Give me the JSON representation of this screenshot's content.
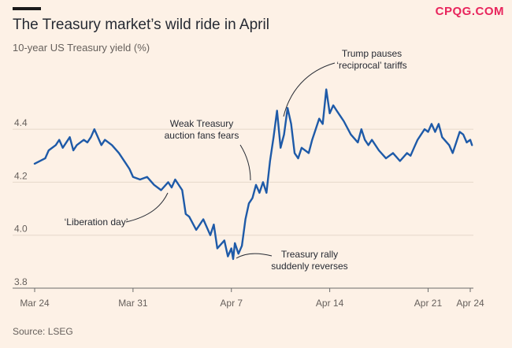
{
  "title": "The Treasury market’s wild ride in April",
  "subtitle": "10-year US Treasury yield (%)",
  "source": "Source: LSEG",
  "watermark": "CPQG.COM",
  "colors": {
    "background": "#fdf1e6",
    "line": "#1e5aa8",
    "text": "#262a33",
    "muted": "#66605c",
    "watermark": "#e8245c"
  },
  "chart_data": {
    "type": "line",
    "title": "The Treasury market’s wild ride in April",
    "subtitle": "10-year US Treasury yield (%)",
    "ylim": [
      3.8,
      4.65
    ],
    "yticks": [
      3.8,
      4.0,
      4.2,
      4.4
    ],
    "ytick_labels": [
      "3.8",
      "4.0",
      "4.2",
      "4.4"
    ],
    "xlim": [
      "2025-03-24",
      "2025-04-24"
    ],
    "xticks": [
      "2025-03-24",
      "2025-03-31",
      "2025-04-07",
      "2025-04-14",
      "2025-04-21",
      "2025-04-24"
    ],
    "xtick_labels": [
      "Mar 24",
      "Mar 31",
      "Apr 7",
      "Apr 14",
      "Apr 21",
      "Apr 24"
    ],
    "grid": "horizontal",
    "series": [
      {
        "points": [
          [
            "2025-03-24",
            4.27
          ],
          [
            "2025-03-24T18:00",
            4.29
          ],
          [
            "2025-03-25",
            4.32
          ],
          [
            "2025-03-25T12:00",
            4.34
          ],
          [
            "2025-03-25T18:00",
            4.36
          ],
          [
            "2025-03-26",
            4.33
          ],
          [
            "2025-03-26T12:00",
            4.37
          ],
          [
            "2025-03-26T18:00",
            4.32
          ],
          [
            "2025-03-27",
            4.34
          ],
          [
            "2025-03-27T12:00",
            4.36
          ],
          [
            "2025-03-27T18:00",
            4.35
          ],
          [
            "2025-03-28",
            4.37
          ],
          [
            "2025-03-28T06:00",
            4.4
          ],
          [
            "2025-03-28T12:00",
            4.37
          ],
          [
            "2025-03-28T18:00",
            4.34
          ],
          [
            "2025-03-29",
            4.36
          ],
          [
            "2025-03-29T12:00",
            4.34
          ],
          [
            "2025-03-30",
            4.31
          ],
          [
            "2025-03-30T12:00",
            4.27
          ],
          [
            "2025-03-30T18:00",
            4.25
          ],
          [
            "2025-03-31",
            4.22
          ],
          [
            "2025-03-31T12:00",
            4.21
          ],
          [
            "2025-04-01",
            4.22
          ],
          [
            "2025-04-01T12:00",
            4.19
          ],
          [
            "2025-04-02",
            4.17
          ],
          [
            "2025-04-02T12:00",
            4.2
          ],
          [
            "2025-04-02T18:00",
            4.18
          ],
          [
            "2025-04-03",
            4.21
          ],
          [
            "2025-04-03T12:00",
            4.17
          ],
          [
            "2025-04-03T18:00",
            4.08
          ],
          [
            "2025-04-04",
            4.07
          ],
          [
            "2025-04-04T12:00",
            4.02
          ],
          [
            "2025-04-05",
            4.06
          ],
          [
            "2025-04-05T12:00",
            4.0
          ],
          [
            "2025-04-05T18:00",
            4.04
          ],
          [
            "2025-04-06",
            3.95
          ],
          [
            "2025-04-06T12:00",
            3.98
          ],
          [
            "2025-04-06T18:00",
            3.92
          ],
          [
            "2025-04-07",
            3.95
          ],
          [
            "2025-04-07T03:00",
            3.91
          ],
          [
            "2025-04-07T06:00",
            3.97
          ],
          [
            "2025-04-07T12:00",
            3.93
          ],
          [
            "2025-04-07T18:00",
            3.96
          ],
          [
            "2025-04-08",
            4.06
          ],
          [
            "2025-04-08T06:00",
            4.12
          ],
          [
            "2025-04-08T12:00",
            4.14
          ],
          [
            "2025-04-08T18:00",
            4.19
          ],
          [
            "2025-04-09",
            4.16
          ],
          [
            "2025-04-09T06:00",
            4.2
          ],
          [
            "2025-04-09T12:00",
            4.16
          ],
          [
            "2025-04-09T18:00",
            4.28
          ],
          [
            "2025-04-10",
            4.37
          ],
          [
            "2025-04-10T06:00",
            4.47
          ],
          [
            "2025-04-10T12:00",
            4.33
          ],
          [
            "2025-04-10T18:00",
            4.38
          ],
          [
            "2025-04-11",
            4.48
          ],
          [
            "2025-04-11T06:00",
            4.42
          ],
          [
            "2025-04-11T12:00",
            4.31
          ],
          [
            "2025-04-11T18:00",
            4.29
          ],
          [
            "2025-04-12",
            4.33
          ],
          [
            "2025-04-12T12:00",
            4.31
          ],
          [
            "2025-04-12T18:00",
            4.36
          ],
          [
            "2025-04-13",
            4.4
          ],
          [
            "2025-04-13T06:00",
            4.44
          ],
          [
            "2025-04-13T12:00",
            4.42
          ],
          [
            "2025-04-13T18:00",
            4.55
          ],
          [
            "2025-04-14",
            4.46
          ],
          [
            "2025-04-14T06:00",
            4.49
          ],
          [
            "2025-04-14T12:00",
            4.47
          ],
          [
            "2025-04-14T18:00",
            4.45
          ],
          [
            "2025-04-15",
            4.43
          ],
          [
            "2025-04-15T12:00",
            4.38
          ],
          [
            "2025-04-16",
            4.35
          ],
          [
            "2025-04-16T06:00",
            4.4
          ],
          [
            "2025-04-16T12:00",
            4.36
          ],
          [
            "2025-04-16T18:00",
            4.34
          ],
          [
            "2025-04-17",
            4.36
          ],
          [
            "2025-04-17T12:00",
            4.32
          ],
          [
            "2025-04-18",
            4.29
          ],
          [
            "2025-04-18T12:00",
            4.31
          ],
          [
            "2025-04-19",
            4.28
          ],
          [
            "2025-04-19T12:00",
            4.31
          ],
          [
            "2025-04-19T18:00",
            4.3
          ],
          [
            "2025-04-20",
            4.33
          ],
          [
            "2025-04-20T06:00",
            4.36
          ],
          [
            "2025-04-20T12:00",
            4.38
          ],
          [
            "2025-04-20T18:00",
            4.4
          ],
          [
            "2025-04-21",
            4.39
          ],
          [
            "2025-04-21T06:00",
            4.42
          ],
          [
            "2025-04-21T12:00",
            4.39
          ],
          [
            "2025-04-21T18:00",
            4.42
          ],
          [
            "2025-04-22",
            4.37
          ],
          [
            "2025-04-22T12:00",
            4.34
          ],
          [
            "2025-04-22T18:00",
            4.31
          ],
          [
            "2025-04-23",
            4.35
          ],
          [
            "2025-04-23T06:00",
            4.39
          ],
          [
            "2025-04-23T12:00",
            4.38
          ],
          [
            "2025-04-23T18:00",
            4.35
          ],
          [
            "2025-04-24",
            4.36
          ],
          [
            "2025-04-24T03:00",
            4.34
          ]
        ]
      }
    ],
    "annotations": [
      {
        "lines": [
          "‘Liberation day’"
        ],
        "x": "2025-04-03",
        "y": 4.19
      },
      {
        "lines": [
          "Weak Treasury",
          "auction fans fears"
        ],
        "x": "2025-04-08T12:00",
        "y": 4.21
      },
      {
        "lines": [
          "Trump pauses",
          "‘reciprocal’ tariffs"
        ],
        "x": "2025-04-10",
        "y": 4.35
      },
      {
        "lines": [
          "Treasury rally",
          "suddenly reverses"
        ],
        "x": "2025-04-07T12:00",
        "y": 3.93
      }
    ]
  }
}
